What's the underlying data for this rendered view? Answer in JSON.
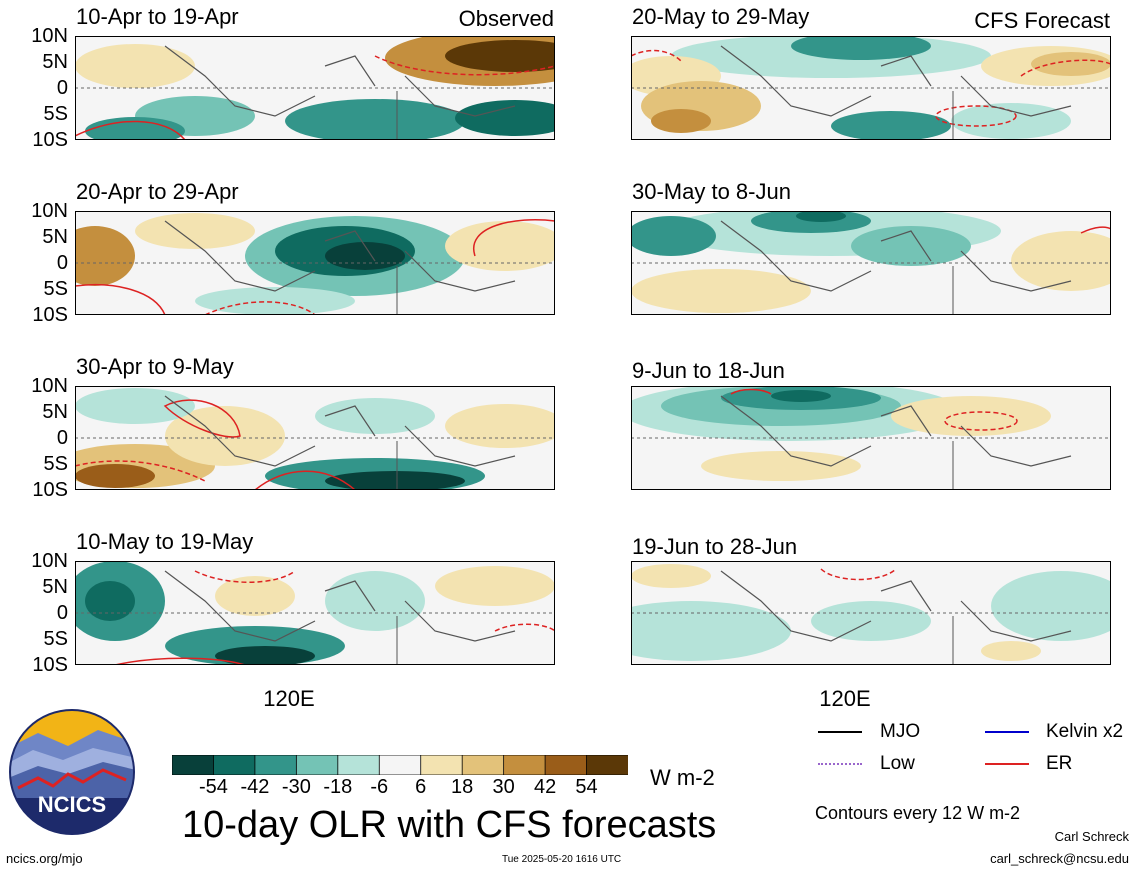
{
  "panels": {
    "observed": [
      {
        "title": "10-Apr to 19-Apr",
        "tag": "Observed"
      },
      {
        "title": "20-Apr to 29-Apr",
        "tag": ""
      },
      {
        "title": "30-Apr to 9-May",
        "tag": ""
      },
      {
        "title": "10-May to 19-May",
        "tag": ""
      }
    ],
    "forecast": [
      {
        "title": "20-May to 29-May",
        "tag": "CFS Forecast"
      },
      {
        "title": "30-May to 8-Jun",
        "tag": ""
      },
      {
        "title": "9-Jun to 18-Jun",
        "tag": ""
      },
      {
        "title": "19-Jun to 28-Jun",
        "tag": ""
      }
    ]
  },
  "latitude_labels": [
    "10N",
    "5N",
    "0",
    "5S",
    "10S"
  ],
  "longitude_label": "120E",
  "colorbar": {
    "labels": [
      "-54",
      "-42",
      "-30",
      "-18",
      "-6",
      "6",
      "18",
      "30",
      "42",
      "54"
    ],
    "colors": [
      "#08403a",
      "#0f6b60",
      "#33958a",
      "#74c3b5",
      "#b5e3d9",
      "#f5f5f5",
      "#f3e3b1",
      "#e3c27a",
      "#c48f3e",
      "#9a5d19",
      "#5b3807"
    ],
    "unit": "W m-2"
  },
  "title": "10-day OLR with CFS forecasts",
  "legend": [
    {
      "label": "MJO",
      "color": "#000000",
      "style": "solid"
    },
    {
      "label": "Kelvin x2",
      "color": "#0000cc",
      "style": "solid"
    },
    {
      "label": "Low",
      "color": "#9966cc",
      "style": "dotted"
    },
    {
      "label": "ER",
      "color": "#dd2222",
      "style": "solid"
    }
  ],
  "contour_note": "Contours every 12 W m-2",
  "logo_text": "NCICS",
  "footer": {
    "left": "ncics.org/mjo",
    "center": "Tue 2025-05-20 1616 UTC",
    "author": "Carl Schreck",
    "email": "carl_schreck@ncsu.edu"
  }
}
